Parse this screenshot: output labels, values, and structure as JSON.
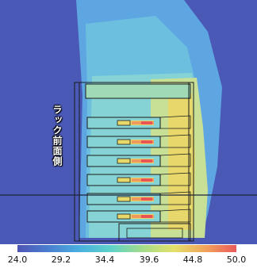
{
  "annotation": {
    "rack_front_label": "ラック前面側"
  },
  "colorbar": {
    "min": 24.0,
    "max": 50.0,
    "ticks": [
      "24.0",
      "29.2",
      "34.4",
      "39.6",
      "44.8",
      "50.0"
    ],
    "colors": [
      "#4f55b5",
      "#4a7fd0",
      "#49b0df",
      "#5fd2c8",
      "#a2dc8a",
      "#e4e16a",
      "#f2a35c",
      "#ea5a5a"
    ]
  },
  "field_colors": {
    "cold": "#4b59b6",
    "cool": "#5ea6e2",
    "mild": "#86d3d6",
    "warm": "#c7e095",
    "hot": "#e8d86c",
    "hotter": "#ef9a5c",
    "hottest": "#e95454"
  }
}
